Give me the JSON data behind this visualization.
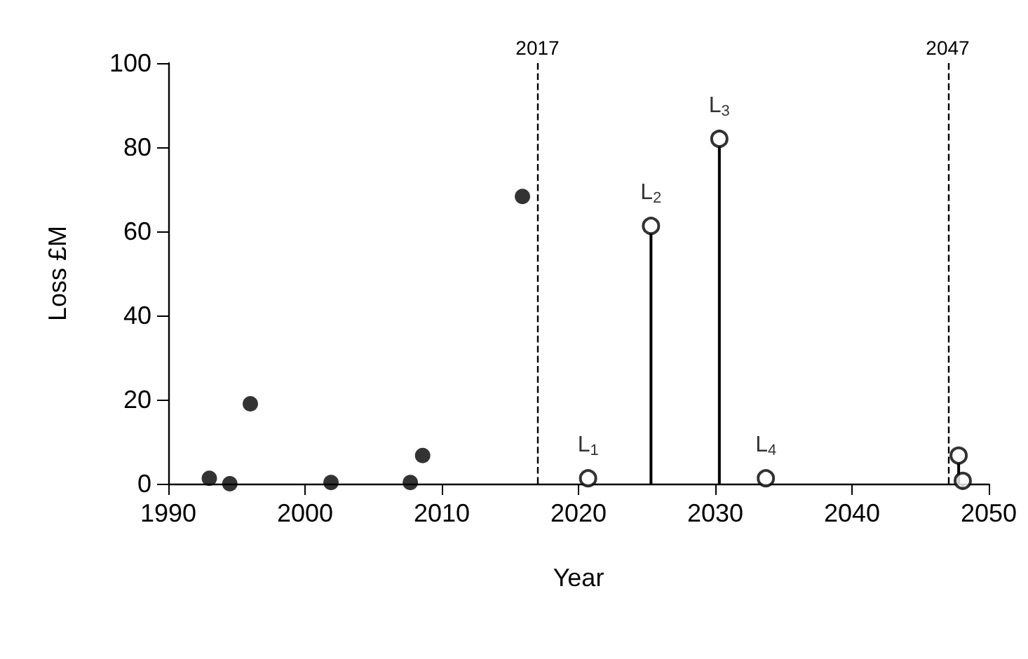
{
  "chart_data": {
    "type": "scatter",
    "xlabel": "Year",
    "ylabel": "Loss £M",
    "xlim": [
      1990,
      2050
    ],
    "xticks": [
      1990,
      2000,
      2010,
      2020,
      2030,
      2040,
      2050
    ],
    "ylim": [
      0,
      100
    ],
    "yticks": [
      0,
      20,
      40,
      60,
      80,
      100
    ],
    "grid": false,
    "marker": "circle",
    "series": [
      {
        "color": "#000000",
        "x": [
          1993.0,
          1994.5,
          1996.0,
          2001.9,
          2007.7,
          2008.6,
          2015.9
        ],
        "values": [
          1.3,
          0,
          19,
          0.3,
          0.3,
          6.7,
          68.3
        ]
      },
      {
        "type": "lollipop",
        "color": "#000000",
        "x": [
          2020.7,
          2025.3,
          2030.3,
          2033.7,
          2047.8,
          2048.1
        ],
        "values": [
          1.3,
          61.3,
          82,
          1.3,
          6.7,
          0.7
        ]
      }
    ],
    "annotations": [
      {
        "text": "L$_{1}$",
        "x": 2020.7,
        "y": 1.3
      },
      {
        "text": "L$_{2}$",
        "x": 2025.3,
        "y": 61.3
      },
      {
        "text": "L$_{3}$",
        "x": 2030.3,
        "y": 82
      },
      {
        "text": "L$_{4}$",
        "x": 2033.7,
        "y": 1.3
      }
    ],
    "ref_lines": [
      {
        "axis": "x",
        "value": 2017,
        "label": "2017",
        "line_style": "dashed",
        "color": "#000000"
      },
      {
        "axis": "x",
        "value": 2047,
        "label": "2047",
        "line_style": "dashed",
        "color": "#000000"
      }
    ]
  }
}
